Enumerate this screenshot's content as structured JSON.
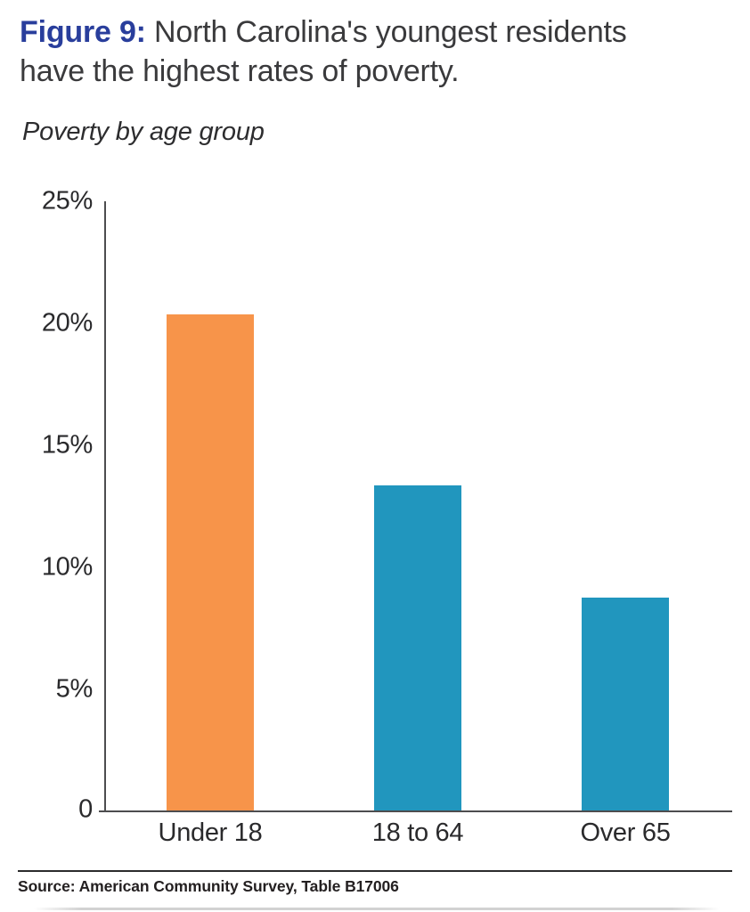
{
  "figure": {
    "label": "Figure 9:",
    "title_line1_rest": " North Carolina's youngest residents",
    "title_line2": "have the highest rates of poverty.",
    "subtitle": "Poverty by age group"
  },
  "chart_data": {
    "type": "bar",
    "title": "Poverty by age group",
    "categories": [
      "Under 18",
      "18 to 64",
      "Over 65"
    ],
    "values": [
      20.3,
      13.3,
      8.7
    ],
    "unit": "%",
    "xlabel": "",
    "ylabel": "",
    "ylim": [
      0,
      25
    ],
    "ytick_labels": [
      "25%",
      "20%",
      "15%",
      "10%",
      "5%",
      "0"
    ],
    "bar_colors": [
      "#F7944A",
      "#2196BE",
      "#2196BE"
    ],
    "grid": false,
    "legend": false
  },
  "footer": {
    "source": "Source: American Community Survey, Table B17006"
  },
  "colors": {
    "accent_blue": "#293E9C",
    "orange": "#F7944A",
    "teal": "#2196BE",
    "axis_gray": "#4D4D4F",
    "text_dark": "#3A3A3C"
  }
}
